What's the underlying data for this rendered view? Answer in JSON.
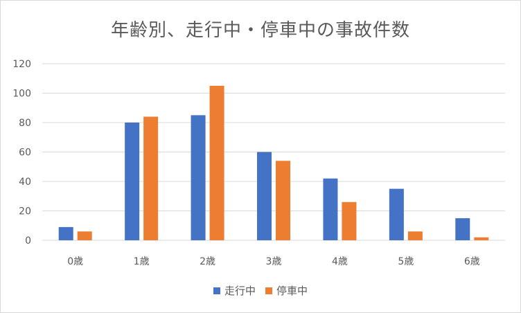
{
  "chart_data": {
    "type": "bar",
    "title": "年齢別、走行中・停車中の事故件数",
    "categories": [
      "0歳",
      "1歳",
      "2歳",
      "3歳",
      "4歳",
      "5歳",
      "6歳"
    ],
    "series": [
      {
        "name": "走行中",
        "color": "#4472c4",
        "values": [
          9,
          80,
          85,
          60,
          42,
          35,
          15
        ]
      },
      {
        "name": "停車中",
        "color": "#ed7d31",
        "values": [
          6,
          84,
          105,
          54,
          26,
          6,
          2
        ]
      }
    ],
    "ylim": [
      0,
      120
    ],
    "yticks": [
      0,
      20,
      40,
      60,
      80,
      100,
      120
    ],
    "grid": true,
    "legend_position": "bottom"
  }
}
